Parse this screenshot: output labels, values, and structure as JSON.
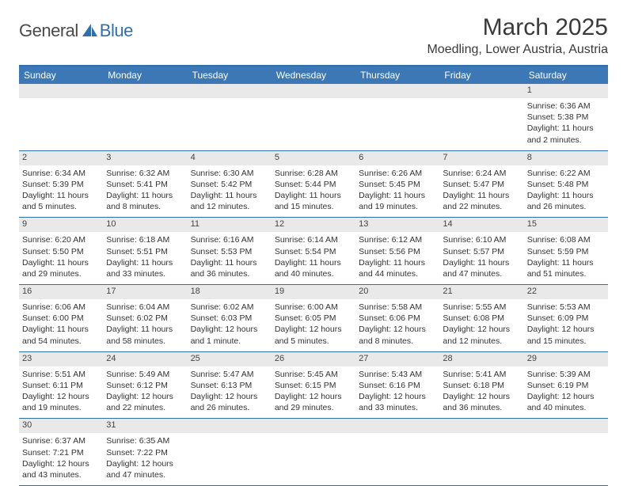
{
  "logo": {
    "dark": "General",
    "blue": "Blue"
  },
  "title": "March 2025",
  "location": "Moedling, Lower Austria, Austria",
  "colors": {
    "header_bg": "#3b78b5",
    "rule": "#2f6fad",
    "daynum_bg": "#e9e9e9"
  },
  "dows": [
    "Sunday",
    "Monday",
    "Tuesday",
    "Wednesday",
    "Thursday",
    "Friday",
    "Saturday"
  ],
  "weeks": [
    [
      null,
      null,
      null,
      null,
      null,
      null,
      {
        "n": "1",
        "sr": "Sunrise: 6:36 AM",
        "ss": "Sunset: 5:38 PM",
        "d1": "Daylight: 11 hours",
        "d2": "and 2 minutes."
      }
    ],
    [
      {
        "n": "2",
        "sr": "Sunrise: 6:34 AM",
        "ss": "Sunset: 5:39 PM",
        "d1": "Daylight: 11 hours",
        "d2": "and 5 minutes."
      },
      {
        "n": "3",
        "sr": "Sunrise: 6:32 AM",
        "ss": "Sunset: 5:41 PM",
        "d1": "Daylight: 11 hours",
        "d2": "and 8 minutes."
      },
      {
        "n": "4",
        "sr": "Sunrise: 6:30 AM",
        "ss": "Sunset: 5:42 PM",
        "d1": "Daylight: 11 hours",
        "d2": "and 12 minutes."
      },
      {
        "n": "5",
        "sr": "Sunrise: 6:28 AM",
        "ss": "Sunset: 5:44 PM",
        "d1": "Daylight: 11 hours",
        "d2": "and 15 minutes."
      },
      {
        "n": "6",
        "sr": "Sunrise: 6:26 AM",
        "ss": "Sunset: 5:45 PM",
        "d1": "Daylight: 11 hours",
        "d2": "and 19 minutes."
      },
      {
        "n": "7",
        "sr": "Sunrise: 6:24 AM",
        "ss": "Sunset: 5:47 PM",
        "d1": "Daylight: 11 hours",
        "d2": "and 22 minutes."
      },
      {
        "n": "8",
        "sr": "Sunrise: 6:22 AM",
        "ss": "Sunset: 5:48 PM",
        "d1": "Daylight: 11 hours",
        "d2": "and 26 minutes."
      }
    ],
    [
      {
        "n": "9",
        "sr": "Sunrise: 6:20 AM",
        "ss": "Sunset: 5:50 PM",
        "d1": "Daylight: 11 hours",
        "d2": "and 29 minutes."
      },
      {
        "n": "10",
        "sr": "Sunrise: 6:18 AM",
        "ss": "Sunset: 5:51 PM",
        "d1": "Daylight: 11 hours",
        "d2": "and 33 minutes."
      },
      {
        "n": "11",
        "sr": "Sunrise: 6:16 AM",
        "ss": "Sunset: 5:53 PM",
        "d1": "Daylight: 11 hours",
        "d2": "and 36 minutes."
      },
      {
        "n": "12",
        "sr": "Sunrise: 6:14 AM",
        "ss": "Sunset: 5:54 PM",
        "d1": "Daylight: 11 hours",
        "d2": "and 40 minutes."
      },
      {
        "n": "13",
        "sr": "Sunrise: 6:12 AM",
        "ss": "Sunset: 5:56 PM",
        "d1": "Daylight: 11 hours",
        "d2": "and 44 minutes."
      },
      {
        "n": "14",
        "sr": "Sunrise: 6:10 AM",
        "ss": "Sunset: 5:57 PM",
        "d1": "Daylight: 11 hours",
        "d2": "and 47 minutes."
      },
      {
        "n": "15",
        "sr": "Sunrise: 6:08 AM",
        "ss": "Sunset: 5:59 PM",
        "d1": "Daylight: 11 hours",
        "d2": "and 51 minutes."
      }
    ],
    [
      {
        "n": "16",
        "sr": "Sunrise: 6:06 AM",
        "ss": "Sunset: 6:00 PM",
        "d1": "Daylight: 11 hours",
        "d2": "and 54 minutes."
      },
      {
        "n": "17",
        "sr": "Sunrise: 6:04 AM",
        "ss": "Sunset: 6:02 PM",
        "d1": "Daylight: 11 hours",
        "d2": "and 58 minutes."
      },
      {
        "n": "18",
        "sr": "Sunrise: 6:02 AM",
        "ss": "Sunset: 6:03 PM",
        "d1": "Daylight: 12 hours",
        "d2": "and 1 minute."
      },
      {
        "n": "19",
        "sr": "Sunrise: 6:00 AM",
        "ss": "Sunset: 6:05 PM",
        "d1": "Daylight: 12 hours",
        "d2": "and 5 minutes."
      },
      {
        "n": "20",
        "sr": "Sunrise: 5:58 AM",
        "ss": "Sunset: 6:06 PM",
        "d1": "Daylight: 12 hours",
        "d2": "and 8 minutes."
      },
      {
        "n": "21",
        "sr": "Sunrise: 5:55 AM",
        "ss": "Sunset: 6:08 PM",
        "d1": "Daylight: 12 hours",
        "d2": "and 12 minutes."
      },
      {
        "n": "22",
        "sr": "Sunrise: 5:53 AM",
        "ss": "Sunset: 6:09 PM",
        "d1": "Daylight: 12 hours",
        "d2": "and 15 minutes."
      }
    ],
    [
      {
        "n": "23",
        "sr": "Sunrise: 5:51 AM",
        "ss": "Sunset: 6:11 PM",
        "d1": "Daylight: 12 hours",
        "d2": "and 19 minutes."
      },
      {
        "n": "24",
        "sr": "Sunrise: 5:49 AM",
        "ss": "Sunset: 6:12 PM",
        "d1": "Daylight: 12 hours",
        "d2": "and 22 minutes."
      },
      {
        "n": "25",
        "sr": "Sunrise: 5:47 AM",
        "ss": "Sunset: 6:13 PM",
        "d1": "Daylight: 12 hours",
        "d2": "and 26 minutes."
      },
      {
        "n": "26",
        "sr": "Sunrise: 5:45 AM",
        "ss": "Sunset: 6:15 PM",
        "d1": "Daylight: 12 hours",
        "d2": "and 29 minutes."
      },
      {
        "n": "27",
        "sr": "Sunrise: 5:43 AM",
        "ss": "Sunset: 6:16 PM",
        "d1": "Daylight: 12 hours",
        "d2": "and 33 minutes."
      },
      {
        "n": "28",
        "sr": "Sunrise: 5:41 AM",
        "ss": "Sunset: 6:18 PM",
        "d1": "Daylight: 12 hours",
        "d2": "and 36 minutes."
      },
      {
        "n": "29",
        "sr": "Sunrise: 5:39 AM",
        "ss": "Sunset: 6:19 PM",
        "d1": "Daylight: 12 hours",
        "d2": "and 40 minutes."
      }
    ],
    [
      {
        "n": "30",
        "sr": "Sunrise: 6:37 AM",
        "ss": "Sunset: 7:21 PM",
        "d1": "Daylight: 12 hours",
        "d2": "and 43 minutes."
      },
      {
        "n": "31",
        "sr": "Sunrise: 6:35 AM",
        "ss": "Sunset: 7:22 PM",
        "d1": "Daylight: 12 hours",
        "d2": "and 47 minutes."
      },
      null,
      null,
      null,
      null,
      null
    ]
  ]
}
